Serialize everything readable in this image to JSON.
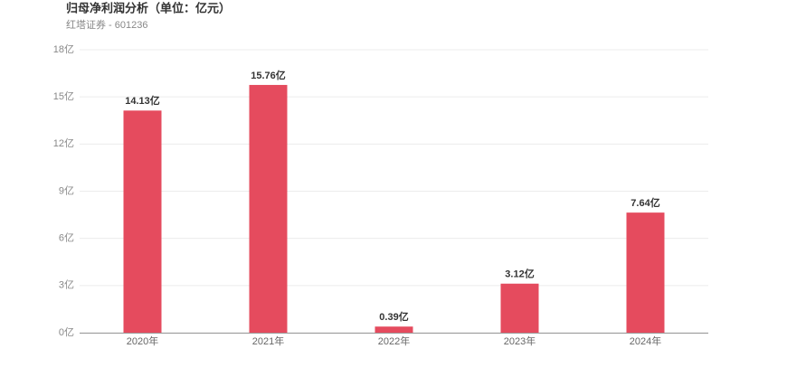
{
  "chart_data": {
    "type": "bar",
    "title": "归母净利润分析（单位：亿元）",
    "subtitle": "红塔证券 - 601236",
    "categories": [
      "2020年",
      "2021年",
      "2022年",
      "2023年",
      "2024年"
    ],
    "values": [
      14.13,
      15.76,
      0.39,
      3.12,
      7.64
    ],
    "value_labels": [
      "14.13亿",
      "15.76亿",
      "0.39亿",
      "3.12亿",
      "7.64亿"
    ],
    "color": "#e54b5e",
    "ylim": [
      0,
      18
    ],
    "yticks": [
      {
        "value": 0,
        "label": "0亿"
      },
      {
        "value": 3,
        "label": "3亿"
      },
      {
        "value": 6,
        "label": "6亿"
      },
      {
        "value": 9,
        "label": "9亿"
      },
      {
        "value": 12,
        "label": "12亿"
      },
      {
        "value": 15,
        "label": "15亿"
      },
      {
        "value": 18,
        "label": "18亿"
      }
    ],
    "grid": true
  }
}
